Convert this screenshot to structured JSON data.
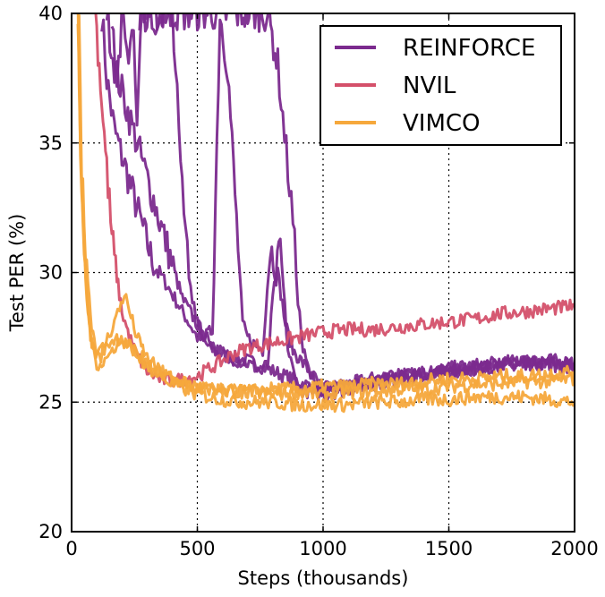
{
  "chart_data": {
    "type": "line",
    "title": "",
    "xlabel": "Steps (thousands)",
    "ylabel": "Test PER (%)",
    "xlim": [
      0,
      2000
    ],
    "ylim": [
      20,
      40
    ],
    "xticks": [
      0,
      500,
      1000,
      1500,
      2000
    ],
    "xtick_labels": [
      "0",
      "500",
      "1000",
      "1500",
      "2000"
    ],
    "yticks": [
      20,
      25,
      30,
      35,
      40
    ],
    "ytick_labels": [
      "20",
      "25",
      "30",
      "35",
      "40"
    ],
    "grid": true,
    "legend_position": "top-right",
    "series": [
      {
        "name": "REINFORCE",
        "color": "#7b2a8e",
        "runs": [
          {
            "x": [
              120,
              140,
              170,
              200,
              230,
              260,
              290,
              320,
              350,
              380,
              410,
              440,
              470,
              500,
              530,
              560,
              600,
              650,
              700,
              750,
              800,
              850,
              900,
              950,
              1000,
              1100,
              1200,
              1300,
              1400,
              1500,
              1600,
              1700,
              1800,
              1900,
              2000
            ],
            "y": [
              40,
              37.5,
              35.5,
              34.5,
              33.5,
              32.5,
              31.5,
              30.5,
              30,
              29.5,
              29,
              28.5,
              28,
              27.5,
              27.3,
              27,
              26.8,
              26.7,
              26.6,
              26.4,
              26.2,
              26,
              25.8,
              25.6,
              25.5,
              25.7,
              25.9,
              26,
              26.1,
              26.2,
              26.3,
              26.4,
              26.5,
              26.5,
              26.5
            ]
          },
          {
            "x": [
              140,
              170,
              200,
              230,
              260,
              290,
              320,
              350,
              380,
              410,
              440,
              470,
              500,
              530,
              560,
              590,
              620,
              650,
              680,
              700,
              730,
              760,
              790,
              820,
              850,
              880,
              920,
              1000,
              1100,
              1200,
              1300,
              1400,
              1500,
              1600,
              1700,
              1800,
              1900,
              2000
            ],
            "y": [
              40,
              38,
              37,
              36,
              35,
              34,
              33,
              32,
              31,
              30,
              29,
              28.5,
              28,
              27.5,
              27.8,
              40,
              38,
              33,
              28,
              27.5,
              27.2,
              27,
              31,
              30,
              28,
              27,
              26.5,
              25.5,
              25.6,
              25.8,
              26,
              26.1,
              26.3,
              26.4,
              26.5,
              26.6,
              26.6,
              26.5
            ]
          },
          {
            "x": [
              160,
              180,
              200,
              220,
              240,
              260,
              280,
              300,
              320,
              340,
              360,
              380,
              400,
              420,
              440,
              460,
              480,
              500,
              540,
              580,
              620,
              660,
              700,
              740,
              780,
              800,
              830,
              860,
              900,
              950,
              1000,
              1100,
              1200,
              1300,
              1400,
              1500,
              1600,
              1700,
              1800,
              1900,
              2000
            ],
            "y": [
              40,
              37,
              40,
              38,
              40,
              36,
              40,
              40,
              40,
              39,
              40,
              40,
              40,
              37,
              33,
              31,
              29,
              28,
              27.5,
              27,
              26.8,
              26.6,
              26.5,
              26.3,
              26.4,
              29,
              31,
              27,
              25.5,
              25.4,
              25.3,
              25.5,
              25.7,
              25.9,
              26,
              26.2,
              26.3,
              26.4,
              26.5,
              26.5,
              26.4
            ]
          },
          {
            "x": [
              270,
              300,
              340,
              380,
              420,
              460,
              500,
              540,
              580,
              620,
              660,
              700,
              740,
              780,
              820,
              840,
              860,
              880,
              900,
              920,
              950,
              1000,
              1100,
              1200,
              1300,
              1400,
              1500,
              1600,
              1700,
              1800,
              1900,
              2000
            ],
            "y": [
              40,
              40,
              40,
              40,
              40,
              40,
              40,
              40,
              40,
              40,
              40,
              40,
              40,
              40,
              38,
              36,
              34,
              32,
              29,
              27,
              26,
              25.5,
              25.6,
              25.8,
              26,
              26.1,
              26.2,
              26.3,
              26.4,
              26.5,
              26.4,
              26.4
            ]
          }
        ]
      },
      {
        "name": "NVIL",
        "color": "#d4506a",
        "runs": [
          {
            "x": [
              95,
              110,
              125,
              140,
              155,
              170,
              185,
              200,
              230,
              260,
              300,
              350,
              400,
              450,
              500,
              550,
              600,
              650,
              700,
              750,
              800,
              850,
              900,
              950,
              1000,
              1100,
              1200,
              1300,
              1400,
              1500,
              1600,
              1700,
              1800,
              1900,
              2000
            ],
            "y": [
              40,
              38,
              36,
              34,
              32,
              30.5,
              29.5,
              28.5,
              27.5,
              26.8,
              26.2,
              25.9,
              25.8,
              25.9,
              26,
              26.3,
              26.6,
              26.9,
              27.1,
              27.2,
              27.3,
              27.4,
              27.5,
              27.6,
              27.7,
              27.8,
              27.8,
              27.9,
              28,
              28.1,
              28.2,
              28.4,
              28.5,
              28.6,
              28.7
            ]
          }
        ]
      },
      {
        "name": "VIMCO",
        "color": "#f6a83c",
        "runs": [
          {
            "x": [
              25,
              30,
              40,
              50,
              60,
              70,
              80,
              95,
              110,
              130,
              150,
              170,
              190,
              210,
              230,
              260,
              300,
              350,
              400,
              450,
              500,
              600,
              700,
              800,
              900,
              1000,
              1100,
              1200,
              1300,
              1400,
              1500,
              1600,
              1700,
              1800,
              1900,
              2000
            ],
            "y": [
              40,
              37,
              34,
              32,
              30.5,
              29,
              28,
              27.2,
              26.9,
              27.2,
              27.6,
              28.1,
              28.6,
              29.2,
              28.5,
              27.5,
              26.7,
              26.2,
              25.9,
              25.7,
              25.5,
              25.5,
              25.4,
              25.3,
              25.4,
              25.3,
              25.4,
              25.4,
              25.5,
              25.5,
              25.6,
              25.7,
              25.7,
              25.8,
              25.8,
              25.9
            ]
          },
          {
            "x": [
              25,
              35,
              45,
              55,
              65,
              75,
              90,
              110,
              130,
              150,
              180,
              220,
              260,
              300,
              350,
              400,
              500,
              600,
              700,
              800,
              900,
              1000,
              1100,
              1200,
              1300,
              1400,
              1500,
              1600,
              1700,
              1800,
              1900,
              2000
            ],
            "y": [
              40,
              35,
              32,
              30,
              28.5,
              27.5,
              27,
              26.7,
              27,
              27.3,
              27.5,
              27.2,
              26.8,
              26.4,
              26,
              25.7,
              25.3,
              25.1,
              25,
              25,
              24.9,
              24.9,
              24.9,
              25,
              25,
              25.1,
              25.1,
              25.2,
              25.2,
              25.2,
              25.1,
              25
            ]
          },
          {
            "x": [
              30,
              40,
              55,
              70,
              85,
              100,
              120,
              150,
              180,
              210,
              250,
              300,
              350,
              400,
              500,
              600,
              700,
              800,
              900,
              1000,
              1100,
              1200,
              1300,
              1400,
              1500,
              1600,
              1700,
              1800,
              1900,
              2000
            ],
            "y": [
              40,
              33,
              30,
              28,
              27,
              26.5,
              26.5,
              26.8,
              27.3,
              27.4,
              27,
              26.5,
              26.2,
              25.9,
              25.6,
              25.4,
              25.4,
              25.5,
              25.5,
              25.6,
              25.6,
              25.7,
              25.7,
              25.8,
              25.9,
              25.9,
              26,
              26,
              26.1,
              26.2
            ]
          }
        ]
      }
    ]
  }
}
